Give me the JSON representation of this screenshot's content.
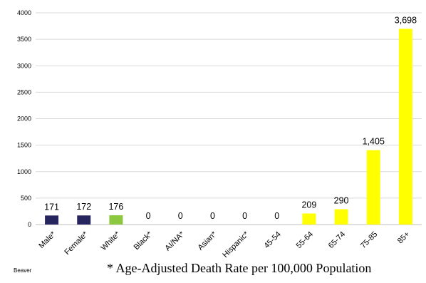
{
  "chart_data": {
    "type": "bar",
    "categories": [
      "Male*",
      "Female*",
      "White*",
      "Black*",
      "AI/NA*",
      "Asian*",
      "Hispanic*",
      "45-54",
      "55-64",
      "65-74",
      "75-85",
      "85+"
    ],
    "values": [
      171,
      172,
      176,
      0,
      0,
      0,
      0,
      0,
      209,
      290,
      1405,
      3698
    ],
    "value_labels": [
      "171",
      "172",
      "176",
      "0",
      "0",
      "0",
      "0",
      "0",
      "209",
      "290",
      "1,405",
      "3,698"
    ],
    "bar_colors": [
      "#27255e",
      "#27255e",
      "#8dc63f",
      "#ffff00",
      "#ffff00",
      "#ffff00",
      "#ffff00",
      "#ffff00",
      "#ffff00",
      "#ffff00",
      "#ffff00",
      "#ffff00"
    ],
    "y_ticks": [
      "0",
      "500",
      "1000",
      "1500",
      "2000",
      "2500",
      "3000",
      "3500",
      "4000"
    ],
    "ylim": [
      0,
      4000
    ],
    "grid": true,
    "title": "",
    "xlabel": "",
    "ylabel": ""
  },
  "source_label": "Beaver",
  "footnote": "* Age-Adjusted Death Rate per 100,000 Population"
}
